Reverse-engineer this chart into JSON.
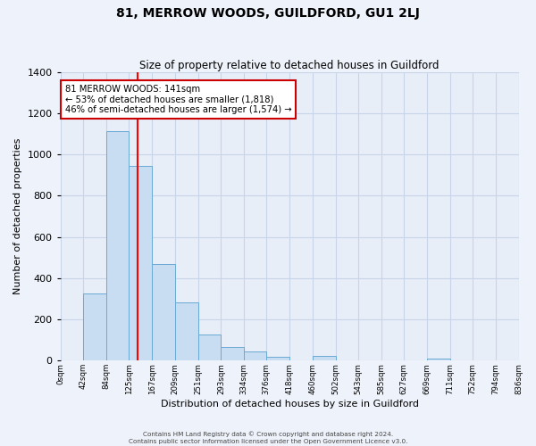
{
  "title": "81, MERROW WOODS, GUILDFORD, GU1 2LJ",
  "subtitle": "Size of property relative to detached houses in Guildford",
  "xlabel": "Distribution of detached houses by size in Guildford",
  "ylabel": "Number of detached properties",
  "bin_edges": [
    0,
    42,
    84,
    125,
    167,
    209,
    251,
    293,
    334,
    376,
    418,
    460,
    502,
    543,
    585,
    627,
    669,
    711,
    752,
    794,
    836
  ],
  "bin_labels": [
    "0sqm",
    "42sqm",
    "84sqm",
    "125sqm",
    "167sqm",
    "209sqm",
    "251sqm",
    "293sqm",
    "334sqm",
    "376sqm",
    "418sqm",
    "460sqm",
    "502sqm",
    "543sqm",
    "585sqm",
    "627sqm",
    "669sqm",
    "711sqm",
    "752sqm",
    "794sqm",
    "836sqm"
  ],
  "counts": [
    0,
    325,
    1113,
    945,
    468,
    283,
    125,
    68,
    44,
    18,
    0,
    22,
    0,
    0,
    0,
    0,
    8,
    0,
    0,
    0
  ],
  "bar_color": "#c9ddf2",
  "bar_edge_color": "#6aaad4",
  "grid_color": "#c8d4e8",
  "red_line_x": 141,
  "annotation_text": "81 MERROW WOODS: 141sqm\n← 53% of detached houses are smaller (1,818)\n46% of semi-detached houses are larger (1,574) →",
  "annotation_box_color": "#ffffff",
  "annotation_box_edge": "#cc0000",
  "ylim": [
    0,
    1400
  ],
  "yticks": [
    0,
    200,
    400,
    600,
    800,
    1000,
    1200,
    1400
  ],
  "footer_line1": "Contains HM Land Registry data © Crown copyright and database right 2024.",
  "footer_line2": "Contains public sector information licensed under the Open Government Licence v3.0.",
  "background_color": "#eef2fa",
  "plot_bg_color": "#e8eef8"
}
